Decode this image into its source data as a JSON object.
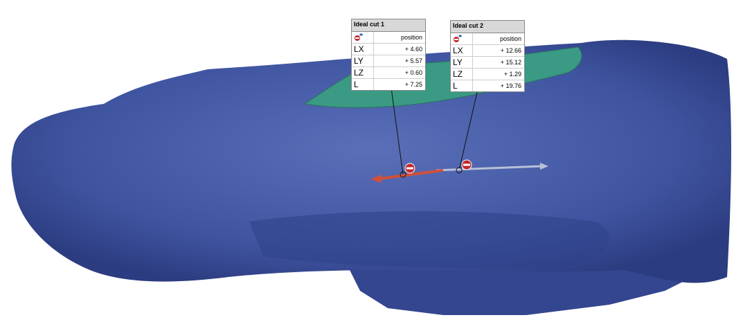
{
  "panels": [
    {
      "title": "Ideal cut 1",
      "header": "position",
      "rows": [
        {
          "label": "LX",
          "value": "+ 4.60"
        },
        {
          "label": "LY",
          "value": "+ 5.57"
        },
        {
          "label": "LZ",
          "value": "+ 0.60"
        },
        {
          "label": "L",
          "value": "+ 7.25"
        }
      ]
    },
    {
      "title": "Ideal cut 2",
      "header": "position",
      "rows": [
        {
          "label": "LX",
          "value": "+ 12.66"
        },
        {
          "label": "LY",
          "value": "+ 15.12"
        },
        {
          "label": "LZ",
          "value": "+ 1.29"
        },
        {
          "label": "L",
          "value": "+ 19.76"
        }
      ]
    }
  ]
}
